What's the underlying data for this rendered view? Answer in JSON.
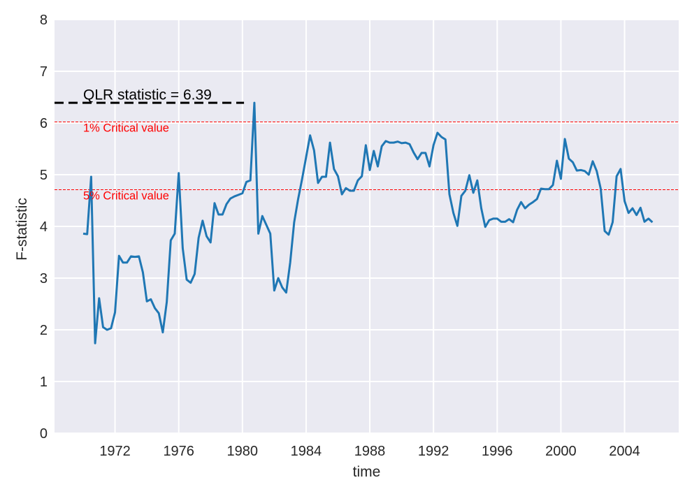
{
  "chart_data": {
    "type": "line",
    "title": "",
    "xlabel": "time",
    "ylabel": "F-statistic",
    "xlim": [
      1968.2,
      2007.4
    ],
    "ylim": [
      0,
      8
    ],
    "grid": true,
    "x_ticks": [
      1972,
      1976,
      1980,
      1984,
      1988,
      1992,
      1996,
      2000,
      2004
    ],
    "x_tick_labels": [
      "1972",
      "1976",
      "1980",
      "1984",
      "1988",
      "1992",
      "1996",
      "2000",
      "2004"
    ],
    "y_ticks": [
      0,
      1,
      2,
      3,
      4,
      5,
      6,
      7,
      8
    ],
    "y_tick_labels": [
      "0",
      "1",
      "2",
      "3",
      "4",
      "5",
      "6",
      "7",
      "8"
    ],
    "series": [
      {
        "name": "F-statistic",
        "color": "#1f77b4",
        "x_start": 1970.0,
        "x_step": 0.25,
        "values": [
          3.86,
          3.85,
          4.96,
          1.74,
          2.61,
          2.05,
          2.0,
          2.03,
          2.34,
          3.43,
          3.3,
          3.3,
          3.42,
          3.41,
          3.42,
          3.11,
          2.55,
          2.59,
          2.42,
          2.32,
          1.95,
          2.54,
          3.73,
          3.86,
          5.03,
          3.58,
          2.97,
          2.91,
          3.08,
          3.78,
          4.11,
          3.81,
          3.69,
          4.45,
          4.23,
          4.23,
          4.43,
          4.54,
          4.58,
          4.61,
          4.64,
          4.86,
          4.89,
          6.39,
          3.86,
          4.2,
          4.03,
          3.86,
          2.76,
          3.0,
          2.82,
          2.72,
          3.3,
          4.08,
          4.53,
          4.92,
          5.34,
          5.76,
          5.47,
          4.84,
          4.96,
          4.96,
          5.62,
          5.11,
          4.97,
          4.62,
          4.74,
          4.69,
          4.69,
          4.89,
          4.97,
          5.57,
          5.09,
          5.46,
          5.16,
          5.55,
          5.65,
          5.62,
          5.62,
          5.64,
          5.61,
          5.62,
          5.59,
          5.43,
          5.3,
          5.42,
          5.42,
          5.16,
          5.57,
          5.81,
          5.73,
          5.68,
          4.62,
          4.26,
          4.01,
          4.59,
          4.69,
          4.99,
          4.65,
          4.89,
          4.35,
          3.99,
          4.12,
          4.15,
          4.15,
          4.09,
          4.09,
          4.14,
          4.08,
          4.32,
          4.47,
          4.35,
          4.42,
          4.47,
          4.53,
          4.73,
          4.72,
          4.72,
          4.8,
          5.27,
          4.92,
          5.69,
          5.31,
          5.24,
          5.08,
          5.09,
          5.07,
          5.0,
          5.26,
          5.07,
          4.73,
          3.91,
          3.84,
          4.08,
          4.97,
          5.11,
          4.49,
          4.26,
          4.35,
          4.22,
          4.36,
          4.09,
          4.15,
          4.08
        ]
      }
    ],
    "reference_lines": [
      {
        "name": "QLR statistic",
        "value": 6.39,
        "x_from": 1968.2,
        "x_to": 1980.1,
        "color": "#000000",
        "style": "dashed"
      },
      {
        "name": "1% Critical value",
        "value": 6.02,
        "color": "#ff0000",
        "style": "dashed"
      },
      {
        "name": "5% Critical value",
        "value": 4.71,
        "color": "#ff0000",
        "style": "dashed"
      }
    ],
    "annotations": [
      {
        "text": "QLR statistic = 6.39",
        "x": 1970.0,
        "y": 6.45,
        "color": "#000000"
      },
      {
        "text": "1% Critical value",
        "x": 1970.0,
        "y": 5.83,
        "color": "#ff0000"
      },
      {
        "text": "5% Critical value",
        "x": 1970.0,
        "y": 4.52,
        "color": "#ff0000"
      }
    ],
    "style": {
      "background": "#eaeaf2",
      "grid_color": "#ffffff",
      "line_color": "#1f77b4"
    }
  }
}
